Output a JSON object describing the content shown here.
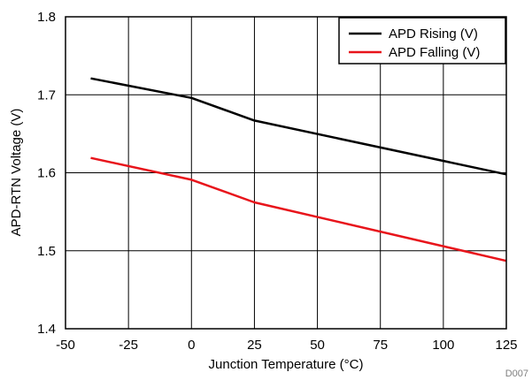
{
  "chart_data": {
    "type": "line",
    "xlabel": "Junction Temperature (°C)",
    "ylabel": "APD-RTN Voltage (V)",
    "xlim": [
      -50,
      125
    ],
    "ylim": [
      1.4,
      1.8
    ],
    "xticks": [
      -50,
      -25,
      0,
      25,
      50,
      75,
      100,
      125
    ],
    "yticks": [
      1.4,
      1.5,
      1.6,
      1.7,
      1.8
    ],
    "xtick_labels": [
      "-50",
      "-25",
      "0",
      "25",
      "50",
      "75",
      "100",
      "125"
    ],
    "ytick_labels": [
      "1.4",
      "1.5",
      "1.6",
      "1.7",
      "1.8"
    ],
    "grid": true,
    "legend_position": "top-right",
    "series": [
      {
        "name": "APD Rising (V)",
        "color": "#000000",
        "x": [
          -40,
          0,
          25,
          125
        ],
        "y": [
          1.721,
          1.696,
          1.667,
          1.598
        ]
      },
      {
        "name": "APD Falling (V)",
        "color": "#e8141b",
        "x": [
          -40,
          0,
          25,
          125
        ],
        "y": [
          1.619,
          1.591,
          1.562,
          1.487
        ]
      }
    ],
    "annotation": "D007"
  }
}
